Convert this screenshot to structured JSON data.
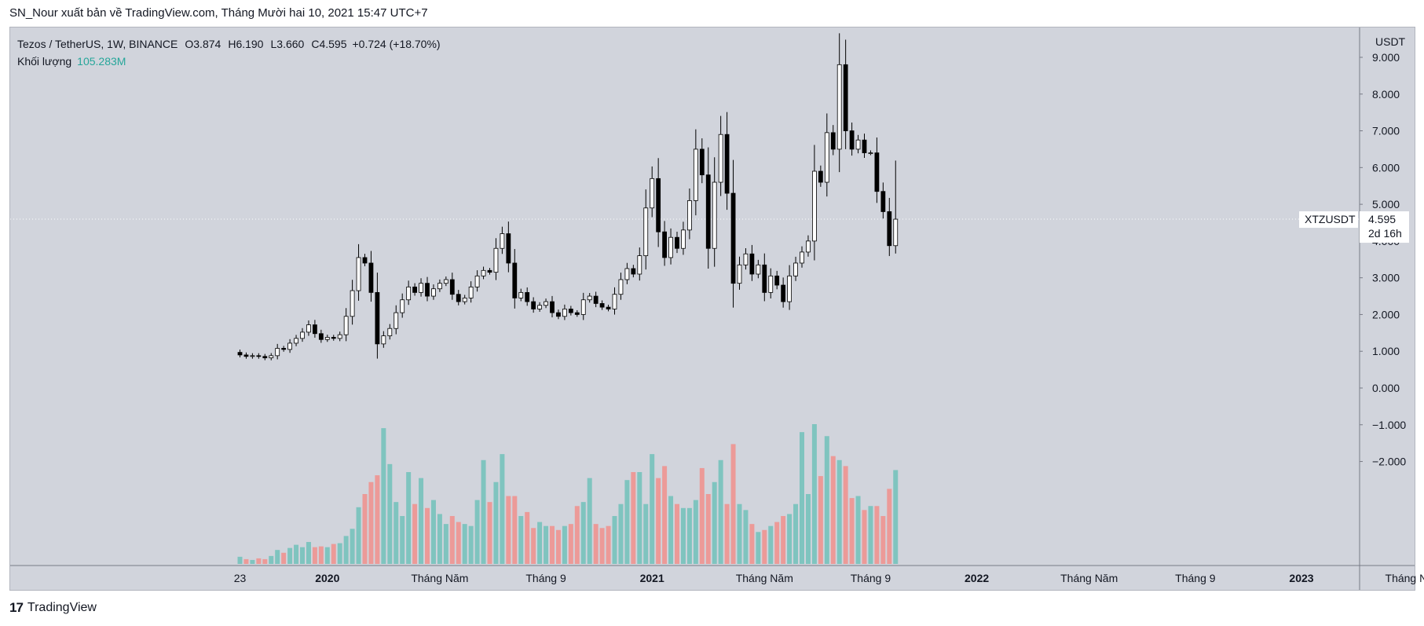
{
  "header": {
    "publish_line": "SN_Nour xuất bản về TradingView.com, Tháng Mười hai 10, 2021 15:47 UTC+7"
  },
  "legend": {
    "symbol": "Tezos / TetherUS, 1W, BINANCE",
    "o_label": "O",
    "o_value": "3.874",
    "h_label": "H",
    "h_value": "6.190",
    "l_label": "L",
    "l_value": "3.660",
    "c_label": "C",
    "c_value": "4.595",
    "change": "+0.724 (+18.70%)",
    "volume_label": "Khối lượng",
    "volume_value": "105.283M"
  },
  "price_tag": {
    "symbol": "XTZUSDT",
    "price": "4.595",
    "countdown": "2d 16h"
  },
  "watermark": {
    "text": "TradingView",
    "logo": "17"
  },
  "colors": {
    "background": "#d1d4dc",
    "up_candle": "#ffffff",
    "down_candle": "#000000",
    "volume_up": "#7fc4bf",
    "volume_down": "#ec9a98",
    "legend_volume": "#26a69a"
  },
  "chart_data": {
    "type": "candlestick",
    "interval": "1W",
    "y_axis": {
      "unit_label": "USDT",
      "ticks": [
        9,
        8,
        7,
        6,
        5,
        4,
        3,
        2,
        1,
        0,
        -1,
        -2
      ],
      "tick_labels": [
        "9.000",
        "8.000",
        "7.000",
        "6.000",
        "5.000",
        "4.000",
        "3.000",
        "2.000",
        "1.000",
        "0.000",
        "−1.000",
        "−2.000"
      ],
      "range": [
        -2.8,
        9.6
      ]
    },
    "x_axis": {
      "labels": [
        {
          "text": "23",
          "week": 0,
          "bold": false
        },
        {
          "text": "2020",
          "week": 14,
          "bold": true
        },
        {
          "text": "Tháng Năm",
          "week": 32,
          "bold": false
        },
        {
          "text": "Tháng 9",
          "week": 49,
          "bold": false
        },
        {
          "text": "2021",
          "week": 66,
          "bold": true
        },
        {
          "text": "Tháng Năm",
          "week": 84,
          "bold": false
        },
        {
          "text": "Tháng 9",
          "week": 101,
          "bold": false
        },
        {
          "text": "2022",
          "week": 118,
          "bold": true
        },
        {
          "text": "Tháng Năm",
          "week": 136,
          "bold": false
        },
        {
          "text": "Tháng 9",
          "week": 153,
          "bold": false
        },
        {
          "text": "2023",
          "week": 170,
          "bold": true
        },
        {
          "text": "Tháng Năm",
          "week": 188,
          "bold": false
        }
      ],
      "week_range": [
        -36,
        208
      ]
    },
    "current_price": 4.595,
    "closes": [
      0.9,
      0.86,
      0.88,
      0.86,
      0.82,
      0.88,
      1.08,
      1.05,
      1.22,
      1.35,
      1.52,
      1.72,
      1.48,
      1.32,
      1.38,
      1.35,
      1.45,
      1.95,
      2.65,
      3.55,
      3.4,
      2.6,
      1.2,
      1.42,
      1.62,
      2.05,
      2.4,
      2.75,
      2.6,
      2.85,
      2.5,
      2.7,
      2.85,
      2.95,
      2.55,
      2.35,
      2.45,
      2.75,
      3.05,
      3.2,
      3.15,
      3.8,
      4.2,
      3.4,
      2.45,
      2.6,
      2.35,
      2.15,
      2.25,
      2.35,
      2.05,
      1.95,
      2.15,
      2.05,
      2.0,
      2.4,
      2.5,
      2.3,
      2.2,
      2.15,
      2.55,
      2.95,
      3.25,
      3.1,
      3.6,
      4.9,
      5.7,
      4.25,
      3.55,
      4.1,
      3.8,
      4.3,
      5.1,
      6.5,
      5.8,
      3.8,
      5.6,
      6.9,
      5.3,
      2.85,
      3.35,
      3.65,
      3.1,
      3.35,
      2.6,
      3.05,
      2.8,
      2.35,
      3.05,
      3.4,
      3.7,
      4.0,
      5.9,
      5.6,
      6.95,
      6.5,
      8.8,
      7.0,
      6.5,
      6.75,
      6.4,
      6.4,
      5.35,
      4.8,
      3.874,
      4.595
    ],
    "volumes": [
      0.18,
      0.12,
      0.1,
      0.14,
      0.12,
      0.2,
      0.35,
      0.28,
      0.4,
      0.48,
      0.42,
      0.55,
      0.42,
      0.44,
      0.42,
      0.5,
      0.52,
      0.7,
      0.88,
      1.42,
      1.75,
      2.05,
      2.22,
      3.4,
      2.5,
      1.55,
      1.2,
      2.3,
      1.5,
      2.15,
      1.4,
      1.6,
      1.25,
      1.0,
      1.2,
      1.05,
      1.0,
      0.95,
      1.6,
      2.6,
      1.55,
      2.05,
      2.75,
      1.7,
      1.7,
      1.2,
      1.3,
      0.9,
      1.05,
      0.95,
      0.95,
      0.85,
      0.95,
      1.0,
      1.45,
      1.55,
      2.15,
      1.0,
      0.9,
      0.95,
      1.2,
      1.5,
      2.1,
      2.3,
      2.3,
      1.5,
      2.75,
      2.15,
      2.45,
      1.7,
      1.5,
      1.4,
      1.4,
      1.6,
      2.4,
      1.75,
      2.05,
      2.6,
      1.5,
      3.0,
      1.5,
      1.35,
      1.0,
      0.8,
      0.85,
      0.95,
      1.05,
      1.2,
      1.25,
      1.5,
      3.3,
      1.75,
      3.5,
      2.2,
      3.2,
      2.7,
      2.6,
      2.45,
      1.65,
      1.7,
      1.35,
      1.45,
      1.45,
      1.2,
      1.88,
      2.35
    ],
    "volume_scale_note": ""
  }
}
